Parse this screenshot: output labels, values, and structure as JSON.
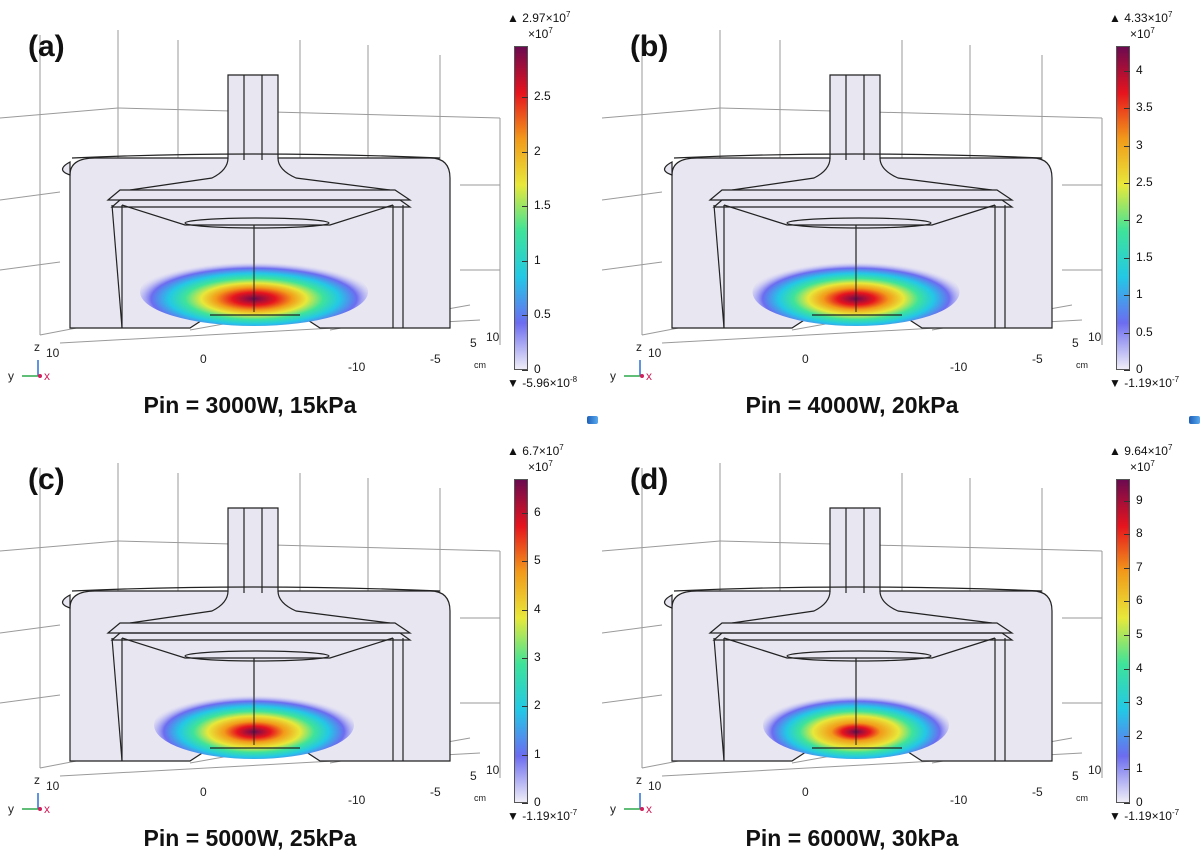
{
  "colors": {
    "colorbar_stops": [
      "#efedf7",
      "#6c6cf0",
      "#23c8e6",
      "#3ee39a",
      "#e8e83a",
      "#f29a1a",
      "#e6141e",
      "#6c0a50"
    ],
    "geometry_fill": "#e8e6f1",
    "geometry_stroke": "#222222"
  },
  "axes": {
    "unit": "cm",
    "z_tick": "10",
    "y_ticks": [
      "0",
      "-10"
    ],
    "x_ticks": [
      "-5",
      "5",
      "10"
    ],
    "triad_labels": {
      "y": "y",
      "z": "z",
      "x": "x"
    }
  },
  "panels": [
    {
      "tag": "(a)",
      "caption": "Pin = 3000W, 15kPa",
      "colorbar": {
        "max_mantissa": "2.97×10",
        "max_exp": "7",
        "multiplier": "×10",
        "multiplier_exp": "7",
        "min_mantissa": "-5.96×10",
        "min_exp": "-8",
        "ticks": [
          "2.5",
          "2",
          "1.5",
          "1",
          "0.5",
          "0"
        ],
        "tick_values": [
          2.5,
          2,
          1.5,
          1,
          0.5,
          0
        ],
        "range": [
          0,
          2.97
        ]
      },
      "plasma": {
        "intensity": 0.95,
        "width_fraction": 1.0
      }
    },
    {
      "tag": "(b)",
      "caption": "Pin = 4000W, 20kPa",
      "colorbar": {
        "max_mantissa": "4.33×10",
        "max_exp": "7",
        "multiplier": "×10",
        "multiplier_exp": "7",
        "min_mantissa": "-1.19×10",
        "min_exp": "-7",
        "ticks": [
          "4",
          "3.5",
          "3",
          "2.5",
          "2",
          "1.5",
          "1",
          "0.5",
          "0"
        ],
        "tick_values": [
          4,
          3.5,
          3,
          2.5,
          2,
          1.5,
          1,
          0.5,
          0
        ],
        "range": [
          0,
          4.33
        ]
      },
      "plasma": {
        "intensity": 0.9,
        "width_fraction": 0.85
      }
    },
    {
      "tag": "(c)",
      "caption": "Pin = 5000W, 25kPa",
      "colorbar": {
        "max_mantissa": "6.7×10",
        "max_exp": "7",
        "multiplier": "×10",
        "multiplier_exp": "7",
        "min_mantissa": "-1.19×10",
        "min_exp": "-7",
        "ticks": [
          "6",
          "5",
          "4",
          "3",
          "2",
          "1",
          "0"
        ],
        "tick_values": [
          6,
          5,
          4,
          3,
          2,
          1,
          0
        ],
        "range": [
          0,
          6.7
        ]
      },
      "plasma": {
        "intensity": 0.85,
        "width_fraction": 0.8
      }
    },
    {
      "tag": "(d)",
      "caption": "Pin = 6000W, 30kPa",
      "colorbar": {
        "max_mantissa": "9.64×10",
        "max_exp": "7",
        "multiplier": "×10",
        "multiplier_exp": "7",
        "min_mantissa": "-1.19×10",
        "min_exp": "-7",
        "ticks": [
          "9",
          "8",
          "7",
          "6",
          "5",
          "4",
          "3",
          "2",
          "1",
          "0"
        ],
        "tick_values": [
          9,
          8,
          7,
          6,
          5,
          4,
          3,
          2,
          1,
          0
        ],
        "range": [
          0,
          9.64
        ]
      },
      "plasma": {
        "intensity": 0.75,
        "width_fraction": 0.7
      }
    }
  ]
}
